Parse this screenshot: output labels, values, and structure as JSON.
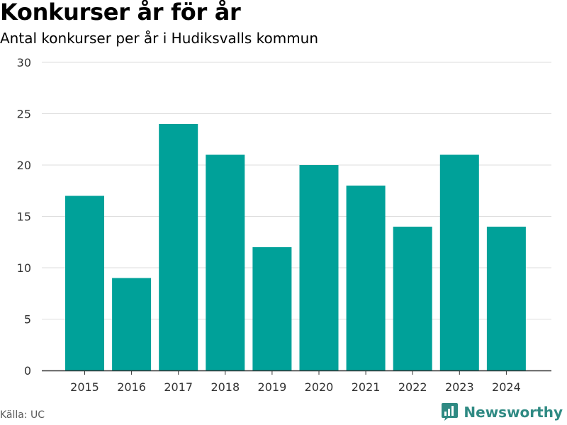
{
  "header": {
    "title": "Konkurser år för år",
    "subtitle": "Antal konkurser per år i Hudiksvalls kommun"
  },
  "footer": {
    "source": "Källa: UC",
    "brand": "Newsworthy"
  },
  "colors": {
    "bar": "#00a199",
    "grid": "#dddddd",
    "axis": "#333333",
    "brand": "#2f8a83"
  },
  "icons": {
    "brand_logo": "bar-chart-badge-icon"
  },
  "chart_data": {
    "type": "bar",
    "categories": [
      "2015",
      "2016",
      "2017",
      "2018",
      "2019",
      "2020",
      "2021",
      "2022",
      "2023",
      "2024"
    ],
    "values": [
      17,
      9,
      24,
      21,
      12,
      20,
      18,
      14,
      21,
      14
    ],
    "title": "Konkurser år för år",
    "subtitle": "Antal konkurser per år i Hudiksvalls kommun",
    "xlabel": "",
    "ylabel": "",
    "ylim": [
      0,
      30
    ],
    "yticks": [
      0,
      5,
      10,
      15,
      20,
      25,
      30
    ],
    "grid": true,
    "legend": "none"
  }
}
